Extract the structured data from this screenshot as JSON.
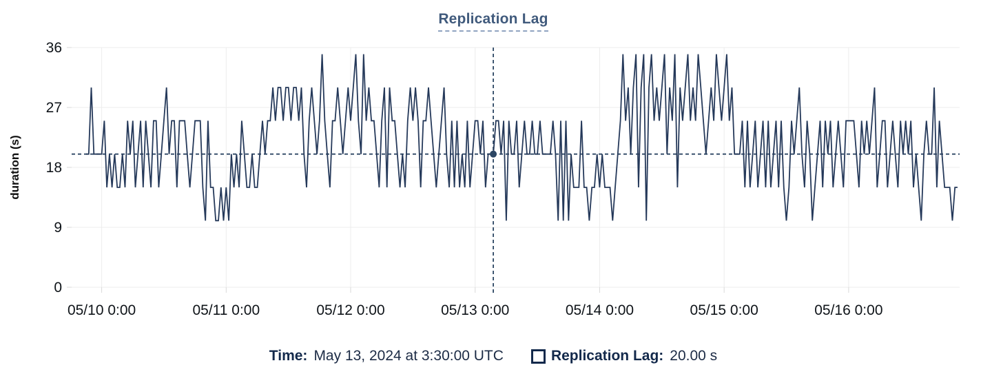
{
  "page": {
    "title": "Replication Lag"
  },
  "chart_data": {
    "type": "line",
    "title": "Replication Lag",
    "xlabel": "",
    "ylabel": "duration (s)",
    "ylim": [
      0,
      36
    ],
    "y_ticks": [
      0,
      9,
      18,
      27,
      36
    ],
    "x_start": "05/09 21:00",
    "x_interval_minutes": 30,
    "x_tick_labels": [
      "05/10 0:00",
      "05/11 0:00",
      "05/12 0:00",
      "05/13 0:00",
      "05/14 0:00",
      "05/15 0:00",
      "05/16 0:00"
    ],
    "x_tick_indices": [
      6,
      54,
      102,
      150,
      198,
      246,
      294
    ],
    "grid": true,
    "legend_position": "bottom",
    "series": [
      {
        "name": "Replication Lag",
        "values": [
          20,
          20,
          30,
          20,
          20,
          20,
          20,
          25,
          15,
          20,
          15,
          20,
          15,
          15,
          20,
          15,
          25,
          20,
          25,
          15,
          20,
          25,
          15,
          25,
          20,
          15,
          25,
          25,
          15,
          20,
          25,
          30,
          20,
          25,
          25,
          15,
          25,
          25,
          25,
          20,
          15,
          20,
          25,
          25,
          25,
          15,
          10,
          25,
          15,
          15,
          10,
          10,
          15,
          10,
          15,
          10,
          20,
          15,
          20,
          15,
          25,
          20,
          15,
          15,
          20,
          15,
          15,
          20,
          25,
          20,
          25,
          25,
          30,
          25,
          30,
          30,
          25,
          30,
          30,
          25,
          30,
          30,
          25,
          30,
          20,
          15,
          25,
          30,
          25,
          20,
          25,
          35,
          25,
          20,
          15,
          25,
          25,
          30,
          25,
          20,
          25,
          30,
          25,
          30,
          35,
          25,
          20,
          35,
          25,
          30,
          25,
          25,
          20,
          15,
          25,
          30,
          15,
          30,
          25,
          25,
          20,
          15,
          20,
          15,
          25,
          30,
          25,
          30,
          25,
          15,
          25,
          25,
          30,
          25,
          20,
          15,
          20,
          25,
          30,
          20,
          15,
          25,
          15,
          25,
          15,
          20,
          15,
          25,
          15,
          20,
          25,
          25,
          20,
          25,
          15,
          20,
          20,
          20,
          25,
          25,
          20,
          25,
          10,
          25,
          20,
          20,
          25,
          15,
          20,
          25,
          20,
          20,
          25,
          20,
          20,
          25,
          20,
          20,
          20,
          20,
          25,
          20,
          10,
          25,
          10,
          25,
          10,
          20,
          15,
          15,
          15,
          25,
          15,
          15,
          10,
          15,
          15,
          20,
          15,
          20,
          15,
          15,
          15,
          10,
          15,
          20,
          25,
          35,
          25,
          30,
          20,
          30,
          35,
          15,
          30,
          35,
          10,
          30,
          35,
          25,
          30,
          25,
          30,
          35,
          20,
          30,
          25,
          35,
          15,
          30,
          25,
          30,
          35,
          25,
          30,
          25,
          35,
          30,
          25,
          20,
          25,
          30,
          25,
          35,
          30,
          25,
          30,
          35,
          25,
          30,
          20,
          20,
          20,
          25,
          15,
          25,
          15,
          20,
          25,
          15,
          20,
          25,
          15,
          25,
          15,
          20,
          25,
          15,
          25,
          15,
          10,
          15,
          25,
          20,
          25,
          30,
          20,
          15,
          25,
          20,
          10,
          15,
          20,
          25,
          15,
          25,
          20,
          25,
          15,
          20,
          25,
          20,
          15,
          25,
          25,
          25,
          25,
          20,
          15,
          25,
          20,
          25,
          20,
          25,
          30,
          15,
          20,
          25,
          25,
          15,
          20,
          25,
          20,
          15,
          25,
          20,
          25,
          20,
          25,
          15,
          20,
          15,
          10,
          20,
          25,
          20,
          20,
          30,
          15,
          25,
          20,
          15,
          15,
          15,
          10,
          15,
          15
        ]
      }
    ],
    "crosshair": {
      "index": 157,
      "value": 20,
      "time": "May 13, 2024 at 3:30:00 UTC",
      "value_label": "20.00 s"
    },
    "colors": {
      "series": "#25395a",
      "crosshair": "#2c4663",
      "grid": "#ececec",
      "tick": "#d9d9d9",
      "axis_text": "#0f1419",
      "title": "#405a7c"
    }
  },
  "footer": {
    "time_label": "Time:",
    "time_value": "May 13, 2024 at 3:30:00 UTC",
    "series_label": "Replication Lag:",
    "series_value": "20.00 s"
  }
}
